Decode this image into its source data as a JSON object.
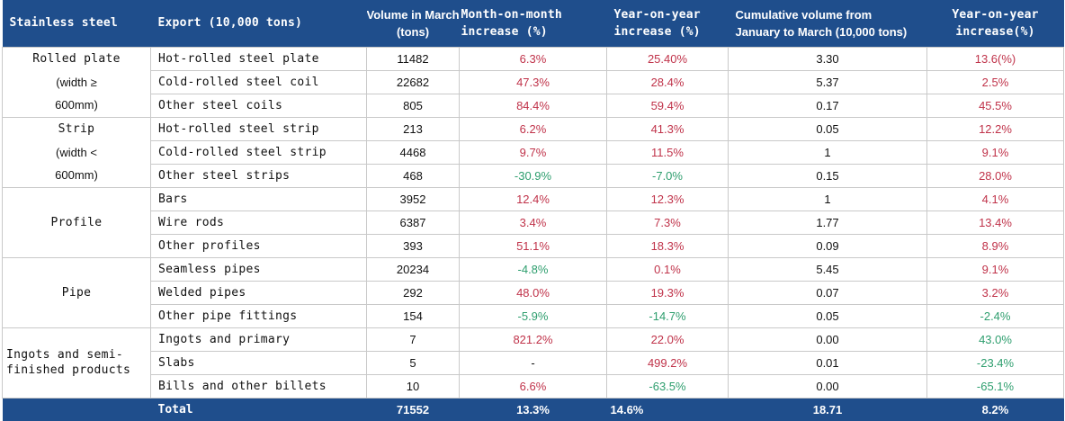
{
  "header": {
    "col1": "Stainless steel",
    "col2": "Export (10,000 tons)",
    "col3": [
      "Volume in March",
      "(tons)"
    ],
    "col4": [
      "Month-on-month",
      "increase (%)"
    ],
    "col5": [
      "Year-on-year",
      "increase (%)"
    ],
    "col6": [
      "Cumulative volume from",
      "January to March (10,000 tons)"
    ],
    "col7": [
      "Year-on-year",
      "increase(%)"
    ]
  },
  "groups": [
    {
      "label": [
        "Rolled plate",
        "(width ≥",
        "600mm)"
      ]
    },
    {
      "label": [
        "Strip",
        "(width <",
        "600mm)"
      ]
    },
    {
      "label": [
        "Profile"
      ]
    },
    {
      "label": [
        "Pipe"
      ]
    },
    {
      "label": [
        "Ingots and semi-",
        "finished products"
      ]
    }
  ],
  "rows": [
    {
      "product": "Hot-rolled steel plate",
      "volume": "11482",
      "mom": "6.3%",
      "yoy": "25.40%",
      "cumulative": "3.30",
      "cum_yoy": "13.6(%)"
    },
    {
      "product": "Cold-rolled steel coil",
      "volume": "22682",
      "mom": "47.3%",
      "yoy": "28.4%",
      "cumulative": "5.37",
      "cum_yoy": "2.5%"
    },
    {
      "product": "Other steel coils",
      "volume": "805",
      "mom": "84.4%",
      "yoy": "59.4%",
      "cumulative": "0.17",
      "cum_yoy": "45.5%"
    },
    {
      "product": "Hot-rolled steel strip",
      "volume": "213",
      "mom": "6.2%",
      "yoy": "41.3%",
      "cumulative": "0.05",
      "cum_yoy": "12.2%"
    },
    {
      "product": "Cold-rolled steel strip",
      "volume": "4468",
      "mom": "9.7%",
      "yoy": "11.5%",
      "cumulative": "1",
      "cum_yoy": "9.1%"
    },
    {
      "product": "Other steel strips",
      "volume": "468",
      "mom": "-30.9%",
      "yoy": "-7.0%",
      "cumulative": "0.15",
      "cum_yoy": "28.0%"
    },
    {
      "product": "Bars",
      "volume": "3952",
      "mom": "12.4%",
      "yoy": "12.3%",
      "cumulative": "1",
      "cum_yoy": "4.1%"
    },
    {
      "product": "Wire rods",
      "volume": "6387",
      "mom": "3.4%",
      "yoy": "7.3%",
      "cumulative": "1.77",
      "cum_yoy": "13.4%"
    },
    {
      "product": "Other profiles",
      "volume": "393",
      "mom": "51.1%",
      "yoy": "18.3%",
      "cumulative": "0.09",
      "cum_yoy": "8.9%"
    },
    {
      "product": "Seamless pipes",
      "volume": "20234",
      "mom": "-4.8%",
      "yoy": "0.1%",
      "cumulative": "5.45",
      "cum_yoy": "9.1%"
    },
    {
      "product": "Welded pipes",
      "volume": "292",
      "mom": "48.0%",
      "yoy": "19.3%",
      "cumulative": "0.07",
      "cum_yoy": "3.2%"
    },
    {
      "product": "Other pipe fittings",
      "volume": "154",
      "mom": "-5.9%",
      "yoy": "-14.7%",
      "cumulative": "0.05",
      "cum_yoy": "-2.4%"
    },
    {
      "product": "Ingots and primary",
      "volume": "7",
      "mom": "821.2%",
      "yoy": "22.0%",
      "cumulative": "0.00",
      "cum_yoy": "43.0%"
    },
    {
      "product": "Slabs",
      "volume": "5",
      "mom": "-",
      "yoy": "499.2%",
      "cumulative": "0.01",
      "cum_yoy": "-23.4%"
    },
    {
      "product": "Bills and other billets",
      "volume": "10",
      "mom": "6.6%",
      "yoy": "-63.5%",
      "cumulative": "0.00",
      "cum_yoy": "-65.1%"
    }
  ],
  "total": {
    "label": "Total",
    "volume": "71552",
    "mom": "13.3%",
    "yoy": "14.6%",
    "cumulative": "18.71",
    "cum_yoy": "8.2%"
  },
  "colors": {
    "header_bg": "#1f4e8c",
    "positive": "#c0334a",
    "negative": "#2e9e6e",
    "grid": "#c9c9c9"
  }
}
